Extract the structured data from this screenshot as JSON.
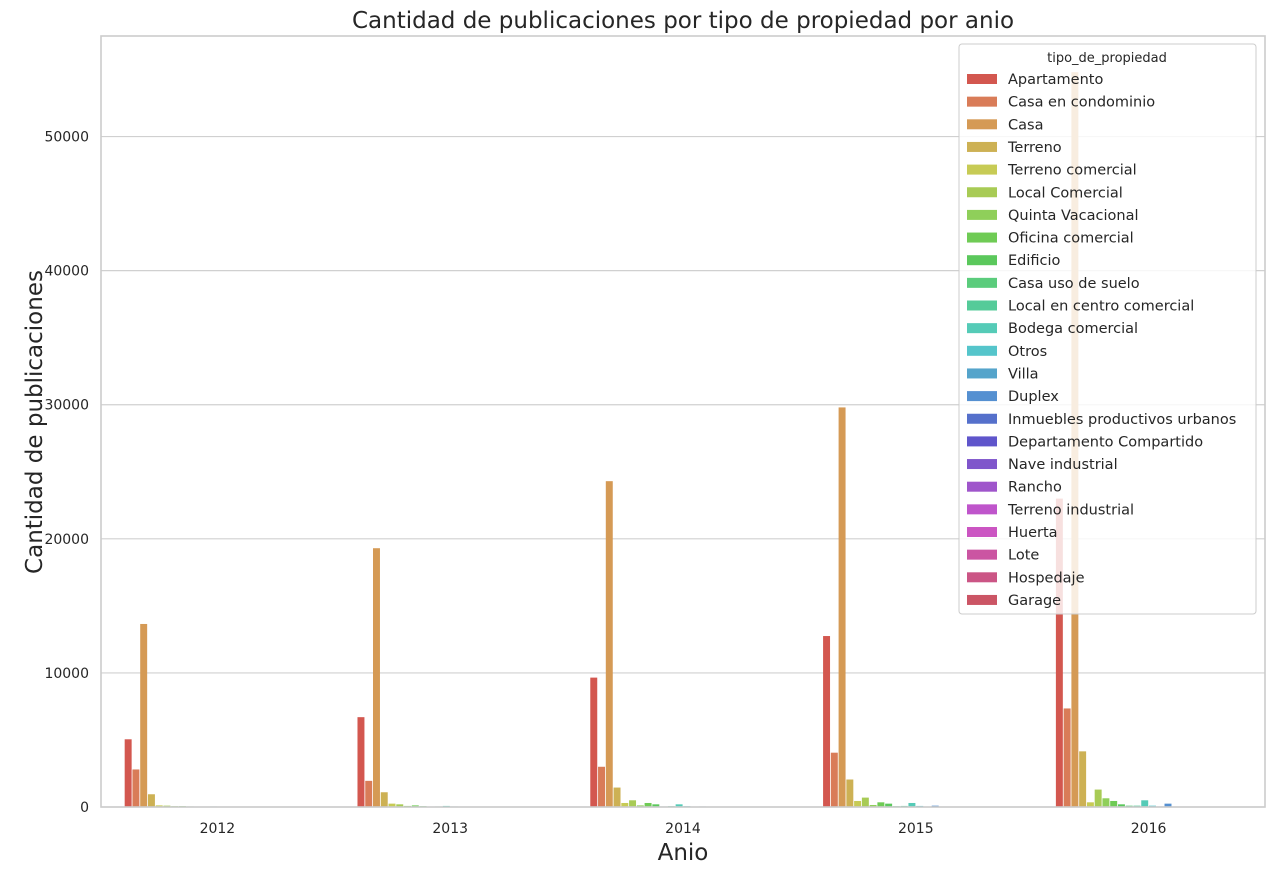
{
  "chart_data": {
    "type": "bar",
    "title": "Cantidad de publicaciones por tipo de propiedad por anio",
    "xlabel": "Anio",
    "ylabel": "Cantidad de publicaciones",
    "ylim": [
      0,
      57500
    ],
    "yticks": [
      0,
      10000,
      20000,
      30000,
      40000,
      50000
    ],
    "ytick_labels": [
      "0",
      "10000",
      "20000",
      "30000",
      "40000",
      "50000"
    ],
    "grid": true,
    "legend_title": "tipo_de_propiedad",
    "legend_position": "top-right",
    "categories": [
      "2012",
      "2013",
      "2014",
      "2015",
      "2016"
    ],
    "series": [
      {
        "name": "Apartamento",
        "color": "#d3574f",
        "values": [
          5050,
          6700,
          9650,
          12750,
          23000
        ]
      },
      {
        "name": "Casa en condominio",
        "color": "#d97c58",
        "values": [
          2800,
          1950,
          3000,
          4050,
          7350
        ]
      },
      {
        "name": "Casa",
        "color": "#d59a55",
        "values": [
          13650,
          19300,
          24300,
          29800,
          54800
        ]
      },
      {
        "name": "Terreno",
        "color": "#cdb154",
        "values": [
          950,
          1100,
          1450,
          2050,
          4150
        ]
      },
      {
        "name": "Terreno comercial",
        "color": "#c7cb55",
        "values": [
          120,
          250,
          300,
          450,
          350
        ]
      },
      {
        "name": "Local Comercial",
        "color": "#a8cb55",
        "values": [
          100,
          200,
          500,
          700,
          1300
        ]
      },
      {
        "name": "Quinta Vacacional",
        "color": "#8fcf5a",
        "values": [
          60,
          80,
          120,
          150,
          650
        ]
      },
      {
        "name": "Oficina comercial",
        "color": "#6fcb55",
        "values": [
          60,
          120,
          300,
          350,
          450
        ]
      },
      {
        "name": "Edificio",
        "color": "#5bc85c",
        "values": [
          40,
          60,
          200,
          250,
          200
        ]
      },
      {
        "name": "Casa uso de suelo",
        "color": "#5bcc7c",
        "values": [
          20,
          30,
          40,
          60,
          100
        ]
      },
      {
        "name": "Local en centro comercial",
        "color": "#55cb99",
        "values": [
          20,
          40,
          60,
          80,
          100
        ]
      },
      {
        "name": "Bodega comercial",
        "color": "#55cbb7",
        "values": [
          40,
          80,
          200,
          300,
          500
        ]
      },
      {
        "name": "Otros",
        "color": "#55c5cb",
        "values": [
          30,
          40,
          60,
          80,
          100
        ]
      },
      {
        "name": "Villa",
        "color": "#55a4cb",
        "values": [
          10,
          15,
          20,
          30,
          40
        ]
      },
      {
        "name": "Duplex",
        "color": "#5590d1",
        "values": [
          20,
          30,
          40,
          100,
          250
        ]
      },
      {
        "name": "Inmuebles productivos urbanos",
        "color": "#5570cb",
        "values": [
          10,
          10,
          15,
          20,
          30
        ]
      },
      {
        "name": "Departamento Compartido",
        "color": "#5f55cb",
        "values": [
          5,
          10,
          10,
          15,
          20
        ]
      },
      {
        "name": "Nave industrial",
        "color": "#7f55cb",
        "values": [
          10,
          10,
          15,
          20,
          30
        ]
      },
      {
        "name": "Rancho",
        "color": "#9f55cb",
        "values": [
          5,
          5,
          10,
          10,
          15
        ]
      },
      {
        "name": "Terreno industrial",
        "color": "#bf55cb",
        "values": [
          5,
          5,
          10,
          10,
          15
        ]
      },
      {
        "name": "Huerta",
        "color": "#cb55c2",
        "values": [
          2,
          2,
          3,
          5,
          5
        ]
      },
      {
        "name": "Lote",
        "color": "#cb55a2",
        "values": [
          2,
          2,
          3,
          5,
          5
        ]
      },
      {
        "name": "Hospedaje",
        "color": "#cb5585",
        "values": [
          2,
          2,
          3,
          5,
          5
        ]
      },
      {
        "name": "Garage",
        "color": "#cb5565",
        "values": [
          1,
          1,
          2,
          2,
          3
        ]
      }
    ]
  }
}
